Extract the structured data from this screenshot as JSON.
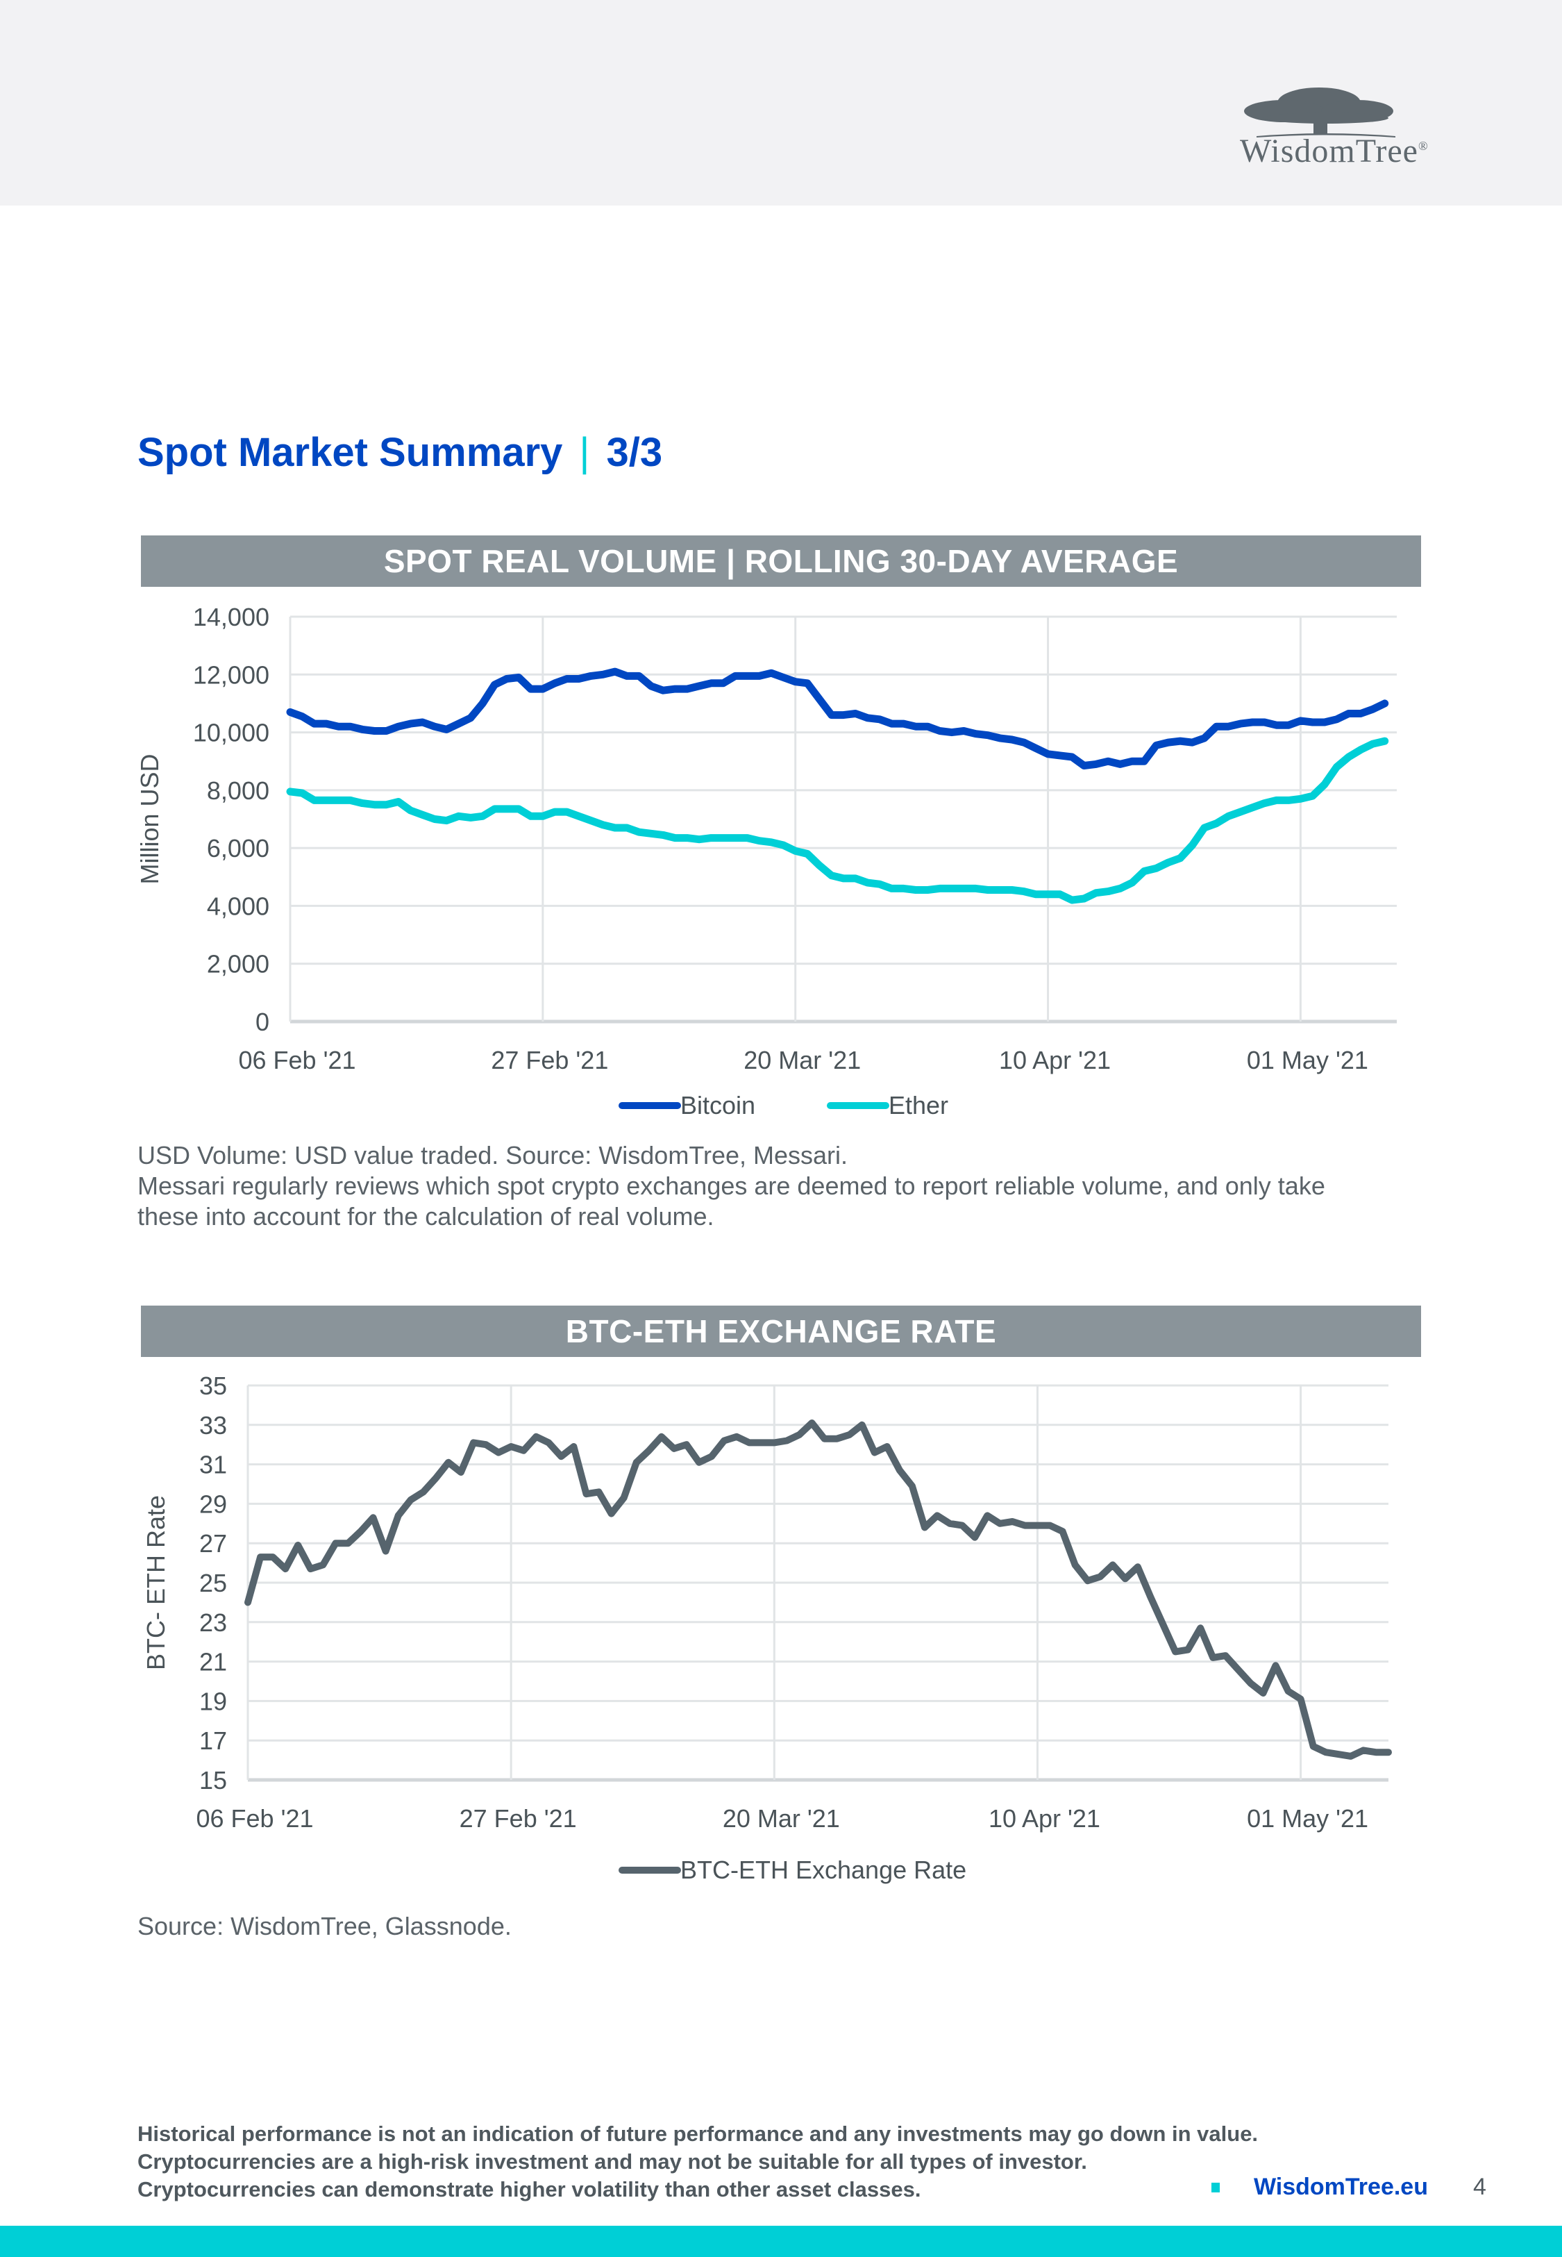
{
  "header": {
    "brand": "WisdomTree",
    "brand_mark": "®"
  },
  "page": {
    "title": "Spot Market Summary",
    "title_separator": "|",
    "title_part": "3/3",
    "number": "4"
  },
  "colors": {
    "brand_blue": "#0047c2",
    "accent_cyan": "#00cfd6",
    "header_gray": "#8a949a",
    "rate_gray": "#56646d",
    "grid": "#e1e4e6",
    "topband": "#f2f2f4"
  },
  "chart_data": [
    {
      "type": "line",
      "title": "SPOT REAL VOLUME | ROLLING 30-DAY AVERAGE",
      "xlabel": "",
      "ylabel": "Million USD",
      "ylim": [
        0,
        14000
      ],
      "yticks": [
        0,
        2000,
        4000,
        6000,
        8000,
        10000,
        12000,
        14000
      ],
      "ytick_labels": [
        "0",
        "2,000",
        "4,000",
        "6,000",
        "8,000",
        "10,000",
        "12,000",
        "14,000"
      ],
      "x_start": "06 Feb '21",
      "x_days_span": 92,
      "xtick_days": [
        0,
        21,
        42,
        63,
        84
      ],
      "xtick_labels": [
        "06 Feb '21",
        "27 Feb '21",
        "20 Mar '21",
        "10 Apr '21",
        "01 May '21"
      ],
      "grid": true,
      "legend": "bottom-center",
      "series": [
        {
          "name": "Bitcoin",
          "color": "#0047c2",
          "x_days": [
            0,
            1,
            2,
            3,
            4,
            5,
            6,
            7,
            8,
            9,
            10,
            11,
            12,
            13,
            14,
            15,
            16,
            17,
            18,
            19,
            20,
            21,
            22,
            23,
            24,
            25,
            26,
            27,
            28,
            29,
            30,
            31,
            32,
            33,
            34,
            35,
            36,
            37,
            38,
            39,
            40,
            41,
            42,
            43,
            44,
            45,
            46,
            47,
            48,
            49,
            50,
            51,
            52,
            53,
            54,
            55,
            56,
            57,
            58,
            59,
            60,
            61,
            62,
            63,
            64,
            65,
            66,
            67,
            68,
            69,
            70,
            71,
            72,
            73,
            74,
            75,
            76,
            77,
            78,
            79,
            80,
            81,
            82,
            83,
            84,
            85,
            86,
            87,
            88,
            89,
            90,
            91
          ],
          "values": [
            10700,
            10550,
            10300,
            10300,
            10200,
            10200,
            10100,
            10050,
            10050,
            10200,
            10300,
            10350,
            10200,
            10100,
            10300,
            10500,
            11000,
            11650,
            11850,
            11900,
            11500,
            11500,
            11700,
            11850,
            11850,
            11950,
            12000,
            12100,
            11950,
            11950,
            11600,
            11450,
            11500,
            11500,
            11600,
            11700,
            11700,
            11950,
            11950,
            11950,
            12050,
            11900,
            11750,
            11700,
            11150,
            10600,
            10600,
            10650,
            10500,
            10450,
            10300,
            10300,
            10200,
            10200,
            10050,
            10000,
            10050,
            9950,
            9900,
            9800,
            9750,
            9650,
            9450,
            9250,
            9200,
            9150,
            8850,
            8900,
            9000,
            8900,
            9000,
            9000,
            9550,
            9650,
            9700,
            9650,
            9800,
            10200,
            10200,
            10300,
            10350,
            10350,
            10250,
            10250,
            10400,
            10350,
            10350,
            10450,
            10650,
            10650,
            10800,
            11000
          ]
        },
        {
          "name": "Ether",
          "color": "#00cfd6",
          "x_days": [
            0,
            1,
            2,
            3,
            4,
            5,
            6,
            7,
            8,
            9,
            10,
            11,
            12,
            13,
            14,
            15,
            16,
            17,
            18,
            19,
            20,
            21,
            22,
            23,
            24,
            25,
            26,
            27,
            28,
            29,
            30,
            31,
            32,
            33,
            34,
            35,
            36,
            37,
            38,
            39,
            40,
            41,
            42,
            43,
            44,
            45,
            46,
            47,
            48,
            49,
            50,
            51,
            52,
            53,
            54,
            55,
            56,
            57,
            58,
            59,
            60,
            61,
            62,
            63,
            64,
            65,
            66,
            67,
            68,
            69,
            70,
            71,
            72,
            73,
            74,
            75,
            76,
            77,
            78,
            79,
            80,
            81,
            82,
            83,
            84,
            85,
            86,
            87,
            88,
            89,
            90,
            91
          ],
          "values": [
            7950,
            7900,
            7650,
            7650,
            7650,
            7650,
            7550,
            7500,
            7500,
            7600,
            7300,
            7150,
            7000,
            6950,
            7100,
            7050,
            7100,
            7350,
            7350,
            7350,
            7100,
            7100,
            7250,
            7250,
            7100,
            6950,
            6800,
            6700,
            6700,
            6550,
            6500,
            6450,
            6350,
            6350,
            6300,
            6350,
            6350,
            6350,
            6350,
            6250,
            6200,
            6100,
            5900,
            5800,
            5400,
            5050,
            4950,
            4950,
            4800,
            4750,
            4600,
            4600,
            4550,
            4550,
            4600,
            4600,
            4600,
            4600,
            4550,
            4550,
            4550,
            4500,
            4400,
            4400,
            4400,
            4200,
            4250,
            4450,
            4500,
            4600,
            4800,
            5200,
            5300,
            5500,
            5650,
            6100,
            6700,
            6850,
            7100,
            7250,
            7400,
            7550,
            7650,
            7650,
            7700,
            7800,
            8200,
            8800,
            9150,
            9400,
            9600,
            9700
          ]
        }
      ]
    },
    {
      "type": "line",
      "title": "BTC-ETH EXCHANGE RATE",
      "xlabel": "",
      "ylabel": "BTC- ETH Rate",
      "ylim": [
        15,
        35
      ],
      "yticks": [
        15,
        17,
        19,
        21,
        23,
        25,
        27,
        29,
        31,
        33,
        35
      ],
      "ytick_labels": [
        "15",
        "17",
        "19",
        "21",
        "23",
        "25",
        "27",
        "29",
        "31",
        "33",
        "35"
      ],
      "x_start": "06 Feb '21",
      "x_days_span": 91,
      "xtick_days": [
        0,
        21,
        42,
        63,
        84
      ],
      "xtick_labels": [
        "06 Feb '21",
        "27 Feb '21",
        "20 Mar '21",
        "10 Apr '21",
        "01 May '21"
      ],
      "grid": true,
      "legend": "bottom-center",
      "series": [
        {
          "name": "BTC-ETH Exchange Rate",
          "color": "#56646d",
          "x_days": [
            0,
            1,
            2,
            3,
            4,
            5,
            6,
            7,
            8,
            9,
            10,
            11,
            12,
            13,
            14,
            15,
            16,
            17,
            18,
            19,
            20,
            21,
            22,
            23,
            24,
            25,
            26,
            27,
            28,
            29,
            30,
            31,
            32,
            33,
            34,
            35,
            36,
            37,
            38,
            39,
            40,
            41,
            42,
            43,
            44,
            45,
            46,
            47,
            48,
            49,
            50,
            51,
            52,
            53,
            54,
            55,
            56,
            57,
            58,
            59,
            60,
            61,
            62,
            63,
            64,
            65,
            66,
            67,
            68,
            69,
            70,
            71,
            72,
            73,
            74,
            75,
            76,
            77,
            78,
            79,
            80,
            81,
            82,
            83,
            84,
            85,
            86,
            87,
            88,
            89,
            90,
            91
          ],
          "values": [
            24.0,
            26.3,
            26.3,
            25.7,
            26.9,
            25.7,
            25.9,
            27.0,
            27.0,
            27.6,
            28.3,
            26.6,
            28.4,
            29.2,
            29.6,
            30.3,
            31.1,
            30.6,
            32.1,
            32.0,
            31.6,
            31.9,
            31.7,
            32.4,
            32.1,
            31.4,
            31.9,
            29.5,
            29.6,
            28.5,
            29.3,
            31.1,
            31.7,
            32.4,
            31.8,
            32.0,
            31.1,
            31.4,
            32.2,
            32.4,
            32.1,
            32.1,
            32.1,
            32.2,
            32.5,
            33.1,
            32.3,
            32.3,
            32.5,
            33.0,
            31.6,
            31.9,
            30.7,
            29.9,
            27.8,
            28.4,
            28.0,
            27.9,
            27.3,
            28.4,
            28.0,
            28.1,
            27.9,
            27.9,
            27.9,
            27.6,
            25.9,
            25.1,
            25.3,
            25.9,
            25.2,
            25.8,
            24.3,
            22.9,
            21.5,
            21.6,
            22.7,
            21.2,
            21.3,
            20.6,
            19.9,
            19.4,
            20.8,
            19.5,
            19.1,
            16.7,
            16.4,
            16.3,
            16.2,
            16.5,
            16.4,
            16.4
          ]
        }
      ]
    }
  ],
  "notes": {
    "chart1_line1": "USD Volume: USD value traded. Source: WisdomTree, Messari.",
    "chart1_line2": "Messari regularly reviews which spot crypto exchanges are deemed to report reliable volume, and only take",
    "chart1_line3": "these into account for the calculation of real volume.",
    "chart2_source": "Source: WisdomTree, Glassnode."
  },
  "footer": {
    "disclaimer_1": "Historical performance is not an indication of future performance and any investments may go down in value.",
    "disclaimer_2": "Cryptocurrencies are a high-risk investment and may not be suitable for all types of investor.",
    "disclaimer_3": "Cryptocurrencies can demonstrate higher volatility than other asset classes.",
    "link": "WisdomTree.eu"
  }
}
